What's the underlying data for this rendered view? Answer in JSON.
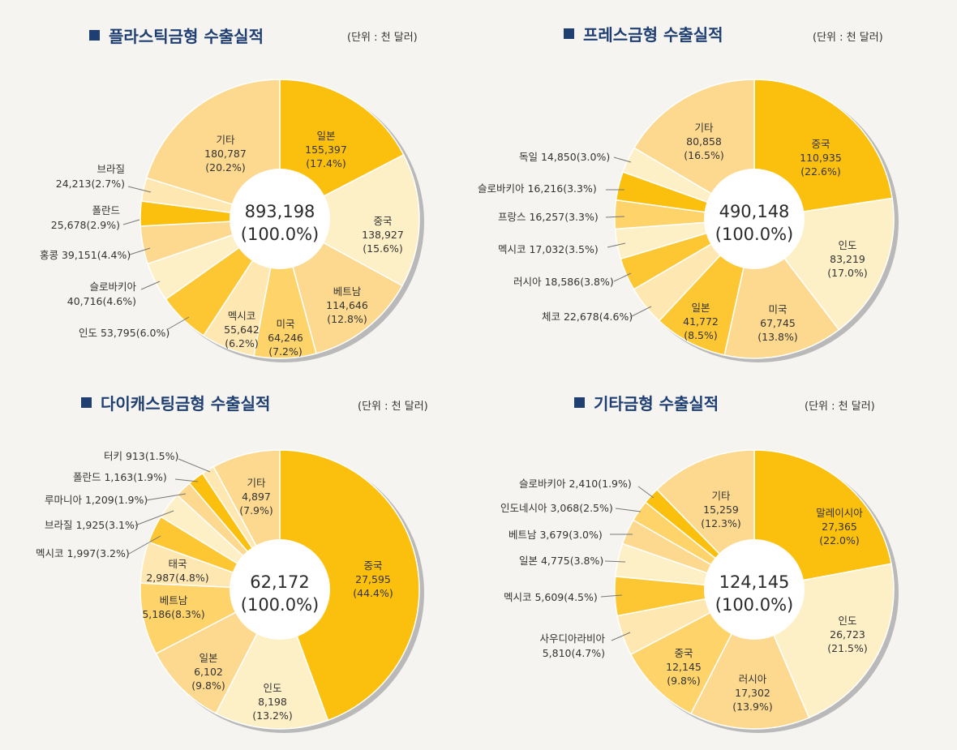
{
  "unit_label": "(단위 : 천 달러)",
  "colors": [
    "#fbbf0e",
    "#fdefc6",
    "#fcd98f",
    "#fdd36a",
    "#fee7b0",
    "#fcc733"
  ],
  "chart_data": [
    {
      "type": "pie",
      "title": "플라스틱금형 수출실적",
      "total_label": "893,198",
      "total_pct_label": "(100.0%)",
      "slices": [
        {
          "name": "일본",
          "value": 155397,
          "value_label": "155,397",
          "pct_label": "(17.4%)",
          "color": "#fbbf0e"
        },
        {
          "name": "중국",
          "value": 138927,
          "value_label": "138,927",
          "pct_label": "(15.6%)",
          "color": "#fdefc6"
        },
        {
          "name": "베트남",
          "value": 114646,
          "value_label": "114,646",
          "pct_label": "(12.8%)",
          "color": "#fcd98f"
        },
        {
          "name": "미국",
          "value": 64246,
          "value_label": "64,246",
          "pct_label": "(7.2%)",
          "color": "#fdd36a"
        },
        {
          "name": "멕시코",
          "value": 55642,
          "value_label": "55,642",
          "pct_label": "(6.2%)",
          "color": "#fee7b0"
        },
        {
          "name": "인도",
          "value": 53795,
          "ext_label": "인도 53,795(6.0%)",
          "color": "#fcc733"
        },
        {
          "name": "슬로바키아",
          "value": 40716,
          "ext_label": "슬로바키아\n40,716(4.6%)",
          "color": "#fdefc6"
        },
        {
          "name": "홍콩",
          "value": 39151,
          "ext_label": "홍콩 39,151(4.4%)",
          "color": "#fcd98f"
        },
        {
          "name": "폴란드",
          "value": 25678,
          "ext_label": "폴란드\n25,678(2.9%)",
          "color": "#fbbf0e"
        },
        {
          "name": "브라질",
          "value": 24213,
          "ext_label": "브라질\n24,213(2.7%)",
          "color": "#fee7b0"
        },
        {
          "name": "기타",
          "value": 180787,
          "value_label": "180,787",
          "pct_label": "(20.2%)",
          "color": "#fcd98f"
        }
      ]
    },
    {
      "type": "pie",
      "title": "프레스금형 수출실적",
      "total_label": "490,148",
      "total_pct_label": "(100.0%)",
      "slices": [
        {
          "name": "중국",
          "value": 110935,
          "value_label": "110,935",
          "pct_label": "(22.6%)",
          "color": "#fbbf0e"
        },
        {
          "name": "인도",
          "value": 83219,
          "value_label": "83,219",
          "pct_label": "(17.0%)",
          "color": "#fdefc6"
        },
        {
          "name": "미국",
          "value": 67745,
          "value_label": "67,745",
          "pct_label": "(13.8%)",
          "color": "#fcd98f"
        },
        {
          "name": "일본",
          "value": 41772,
          "value_label": "41,772",
          "pct_label": "(8.5%)",
          "color": "#fcc733"
        },
        {
          "name": "체코",
          "value": 22678,
          "ext_label": "체코 22,678(4.6%)",
          "color": "#fee7b0"
        },
        {
          "name": "러시아",
          "value": 18586,
          "ext_label": "러시아 18,586(3.8%)",
          "color": "#fcc733"
        },
        {
          "name": "멕시코",
          "value": 17032,
          "ext_label": "멕시코 17,032(3.5%)",
          "color": "#fdefc6"
        },
        {
          "name": "프랑스",
          "value": 16257,
          "ext_label": "프랑스 16,257(3.3%)",
          "color": "#fdd36a"
        },
        {
          "name": "슬로바키아",
          "value": 16216,
          "ext_label": "슬로바키아 16,216(3.3%)",
          "color": "#fbbf0e"
        },
        {
          "name": "독일",
          "value": 14850,
          "ext_label": "독일 14,850(3.0%)",
          "color": "#fdefc6"
        },
        {
          "name": "기타",
          "value": 80858,
          "value_label": "80,858",
          "pct_label": "(16.5%)",
          "color": "#fcd98f"
        }
      ]
    },
    {
      "type": "pie",
      "title": "다이캐스팅금형 수출실적",
      "total_label": "62,172",
      "total_pct_label": "(100.0%)",
      "slices": [
        {
          "name": "중국",
          "value": 27595,
          "value_label": "27,595",
          "pct_label": "(44.4%)",
          "color": "#fbbf0e"
        },
        {
          "name": "인도",
          "value": 8198,
          "value_label": "8,198",
          "pct_label": "(13.2%)",
          "color": "#fdefc6"
        },
        {
          "name": "일본",
          "value": 6102,
          "value_label": "6,102",
          "pct_label": "(9.8%)",
          "color": "#fcd98f"
        },
        {
          "name": "베트남",
          "value": 5186,
          "value_label": "5,186(8.3%)",
          "color": "#fdd36a"
        },
        {
          "name": "태국",
          "value": 2987,
          "value_label": "2,987(4.8%)",
          "color": "#fee7b0"
        },
        {
          "name": "멕시코",
          "value": 1997,
          "ext_label": "멕시코 1,997(3.2%)",
          "color": "#fcc733"
        },
        {
          "name": "브라질",
          "value": 1925,
          "ext_label": "브라질 1,925(3.1%)",
          "color": "#fdefc6"
        },
        {
          "name": "루마니아",
          "value": 1209,
          "ext_label": "루마니아 1,209(1.9%)",
          "color": "#fcd98f"
        },
        {
          "name": "폴란드",
          "value": 1163,
          "ext_label": "폴란드 1,163(1.9%)",
          "color": "#fbbf0e"
        },
        {
          "name": "터키",
          "value": 913,
          "ext_label": "터키 913(1.5%)",
          "color": "#fee7b0"
        },
        {
          "name": "기타",
          "value": 4897,
          "value_label": "4,897",
          "pct_label": "(7.9%)",
          "color": "#fcd98f"
        }
      ]
    },
    {
      "type": "pie",
      "title": "기타금형 수출실적",
      "total_label": "124,145",
      "total_pct_label": "(100.0%)",
      "slices": [
        {
          "name": "말레이시아",
          "value": 27365,
          "value_label": "27,365",
          "pct_label": "(22.0%)",
          "color": "#fbbf0e"
        },
        {
          "name": "인도",
          "value": 26723,
          "value_label": "26,723",
          "pct_label": "(21.5%)",
          "color": "#fdefc6"
        },
        {
          "name": "러시아",
          "value": 17302,
          "value_label": "17,302",
          "pct_label": "(13.9%)",
          "color": "#fcd98f"
        },
        {
          "name": "중국",
          "value": 12145,
          "value_label": "12,145",
          "pct_label": "(9.8%)",
          "color": "#fdd36a"
        },
        {
          "name": "사우디아라비아",
          "value": 5810,
          "ext_label": "사우디아라비아\n5,810(4.7%)",
          "color": "#fee7b0"
        },
        {
          "name": "멕시코",
          "value": 5609,
          "ext_label": "멕시코 5,609(4.5%)",
          "color": "#fcc733"
        },
        {
          "name": "일본",
          "value": 4775,
          "ext_label": "일본 4,775(3.8%)",
          "color": "#fdefc6"
        },
        {
          "name": "베트남",
          "value": 3679,
          "ext_label": "베트남 3,679(3.0%)",
          "color": "#fcd98f"
        },
        {
          "name": "인도네시아",
          "value": 3068,
          "ext_label": "인도네시아 3,068(2.5%)",
          "color": "#fdd36a"
        },
        {
          "name": "슬로바키아",
          "value": 2410,
          "ext_label": "슬로바키아 2,410(1.9%)",
          "color": "#fbbf0e"
        },
        {
          "name": "기타",
          "value": 15259,
          "value_label": "15,259",
          "pct_label": "(12.3%)",
          "color": "#fcd98f"
        }
      ]
    }
  ]
}
